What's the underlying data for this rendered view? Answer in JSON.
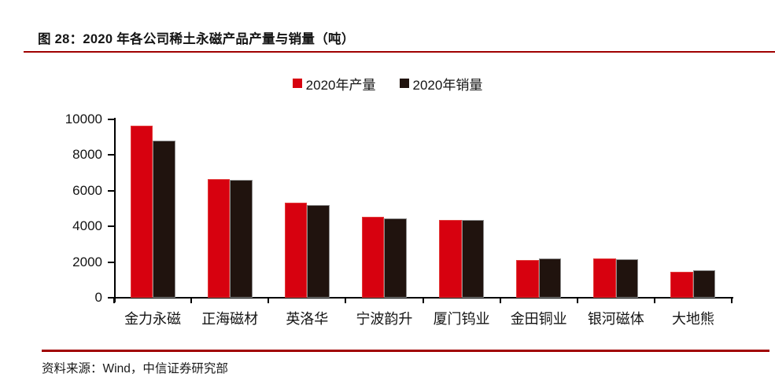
{
  "figure": {
    "title": "图 28：2020 年各公司稀土永磁产品产量与销量（吨）"
  },
  "chart_data": {
    "type": "bar",
    "title": "2020 年各公司稀土永磁产品产量与销量（吨）",
    "categories": [
      "金力永磁",
      "正海磁材",
      "英洛华",
      "宁波韵升",
      "厦门钨业",
      "金田铜业",
      "银河磁体",
      "大地熊"
    ],
    "series": [
      {
        "name": "2020年产量",
        "color": "#d7010f",
        "values": [
          9650,
          6650,
          5350,
          4550,
          4350,
          2100,
          2200,
          1450
        ]
      },
      {
        "name": "2020年销量",
        "color": "#20130e",
        "values": [
          8800,
          6600,
          5200,
          4450,
          4350,
          2200,
          2150,
          1550
        ]
      }
    ],
    "xlabel": "",
    "ylabel": "",
    "ylim": [
      0,
      10000
    ],
    "yticks": [
      0,
      2000,
      4000,
      6000,
      8000,
      10000
    ],
    "grid": false,
    "legend_position": "top"
  },
  "footer": {
    "source": "资料来源：Wind，中信证券研究部"
  },
  "colors": {
    "accent_rule": "#a00000",
    "axis": "#000000",
    "production_red": "#d7010f",
    "sales_black": "#20130e"
  }
}
